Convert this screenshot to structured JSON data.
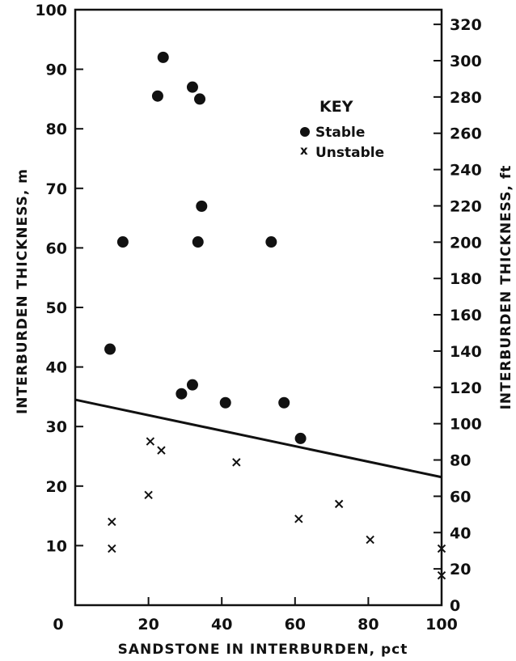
{
  "chart_data": {
    "type": "scatter",
    "xlabel": "SANDSTONE IN INTERBURDEN, pct",
    "ylabel": "INTERBURDEN THICKNESS, m",
    "y2label": "INTERBURDEN THICKNESS, ft",
    "xlim": [
      0,
      100
    ],
    "ylim": [
      0,
      100
    ],
    "y2lim": [
      0,
      328.08
    ],
    "x_ticks": [
      0,
      20,
      40,
      60,
      80,
      100
    ],
    "y_ticks": [
      10,
      20,
      30,
      40,
      50,
      60,
      70,
      80,
      90,
      100
    ],
    "y2_ticks": [
      0,
      20,
      40,
      60,
      80,
      100,
      120,
      140,
      160,
      180,
      200,
      220,
      240,
      260,
      280,
      300,
      320
    ],
    "legend": {
      "title": "KEY",
      "placement": "top-right",
      "entries": [
        {
          "label": "Stable",
          "marker": "●"
        },
        {
          "label": "Unstable",
          "marker": "x"
        }
      ]
    },
    "series": [
      {
        "name": "Stable",
        "marker": "circle",
        "points": [
          {
            "x": 24,
            "y": 92
          },
          {
            "x": 22.5,
            "y": 85.5
          },
          {
            "x": 32,
            "y": 87
          },
          {
            "x": 34,
            "y": 85
          },
          {
            "x": 34.5,
            "y": 67
          },
          {
            "x": 13,
            "y": 61
          },
          {
            "x": 33.5,
            "y": 61
          },
          {
            "x": 53.5,
            "y": 61
          },
          {
            "x": 9.5,
            "y": 43
          },
          {
            "x": 29,
            "y": 35.5
          },
          {
            "x": 32,
            "y": 37
          },
          {
            "x": 41,
            "y": 34
          },
          {
            "x": 57,
            "y": 34
          },
          {
            "x": 61.5,
            "y": 28
          }
        ]
      },
      {
        "name": "Unstable",
        "marker": "x",
        "points": [
          {
            "x": 20.5,
            "y": 27.5
          },
          {
            "x": 23.5,
            "y": 26
          },
          {
            "x": 44,
            "y": 24
          },
          {
            "x": 20,
            "y": 18.5
          },
          {
            "x": 10,
            "y": 14
          },
          {
            "x": 10,
            "y": 9.5
          },
          {
            "x": 61,
            "y": 14.5
          },
          {
            "x": 72,
            "y": 17
          },
          {
            "x": 80.5,
            "y": 11
          },
          {
            "x": 100,
            "y": 9.5
          },
          {
            "x": 100,
            "y": 5
          }
        ]
      }
    ],
    "trend_line": {
      "x": [
        0,
        100
      ],
      "y": [
        34.5,
        21.5
      ]
    }
  }
}
